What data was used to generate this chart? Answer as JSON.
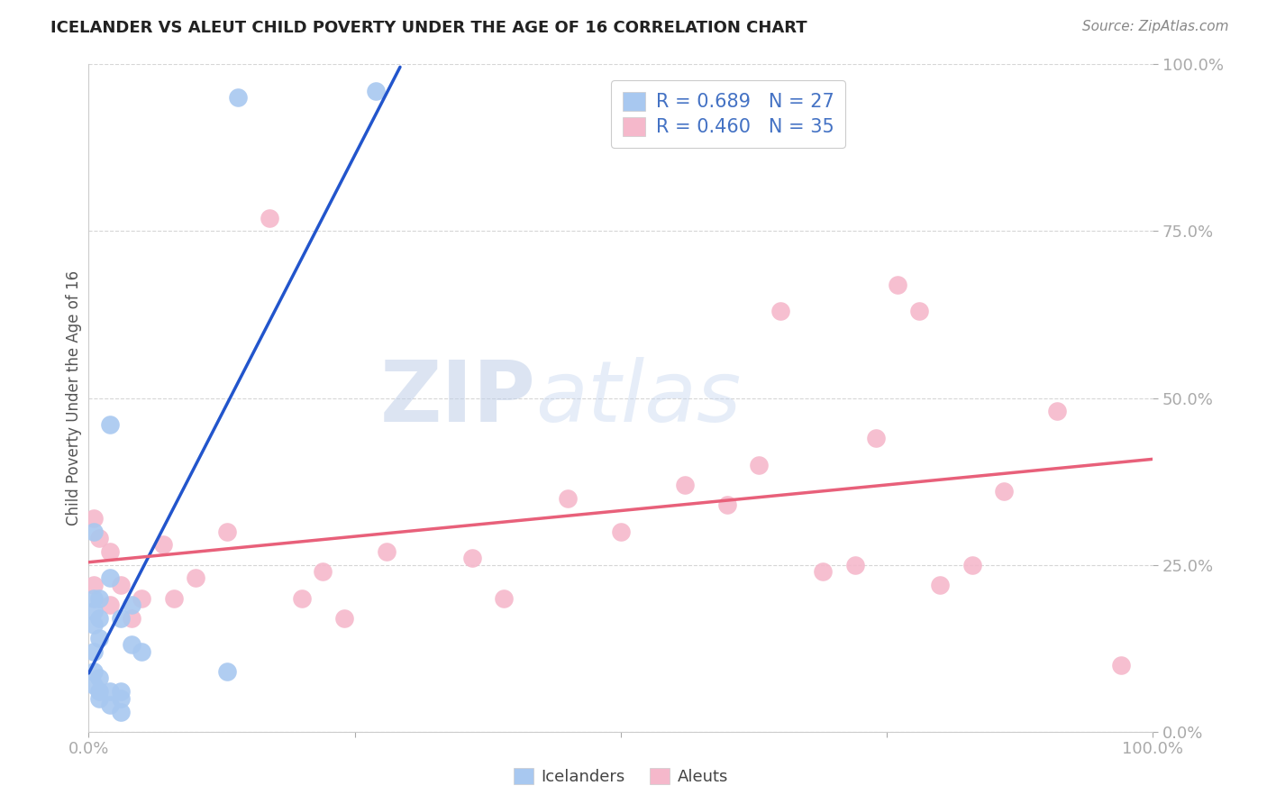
{
  "title": "ICELANDER VS ALEUT CHILD POVERTY UNDER THE AGE OF 16 CORRELATION CHART",
  "source": "Source: ZipAtlas.com",
  "ylabel": "Child Poverty Under the Age of 16",
  "xlim": [
    0.0,
    1.0
  ],
  "ylim": [
    0.0,
    1.0
  ],
  "icelanders_x": [
    0.02,
    0.14,
    0.27,
    0.005,
    0.005,
    0.01,
    0.01,
    0.02,
    0.01,
    0.005,
    0.005,
    0.005,
    0.005,
    0.01,
    0.005,
    0.01,
    0.03,
    0.04,
    0.02,
    0.04,
    0.01,
    0.05,
    0.13,
    0.03,
    0.03,
    0.02,
    0.03
  ],
  "icelanders_y": [
    0.46,
    0.95,
    0.96,
    0.3,
    0.2,
    0.17,
    0.14,
    0.23,
    0.2,
    0.18,
    0.16,
    0.12,
    0.09,
    0.08,
    0.07,
    0.06,
    0.17,
    0.19,
    0.06,
    0.13,
    0.05,
    0.12,
    0.09,
    0.05,
    0.06,
    0.04,
    0.03
  ],
  "aleuts_x": [
    0.005,
    0.005,
    0.01,
    0.02,
    0.02,
    0.03,
    0.04,
    0.05,
    0.07,
    0.08,
    0.1,
    0.13,
    0.17,
    0.2,
    0.22,
    0.24,
    0.28,
    0.36,
    0.39,
    0.45,
    0.5,
    0.56,
    0.6,
    0.63,
    0.65,
    0.69,
    0.72,
    0.74,
    0.76,
    0.78,
    0.8,
    0.83,
    0.86,
    0.91,
    0.97
  ],
  "aleuts_y": [
    0.32,
    0.22,
    0.29,
    0.19,
    0.27,
    0.22,
    0.17,
    0.2,
    0.28,
    0.2,
    0.23,
    0.3,
    0.77,
    0.2,
    0.24,
    0.17,
    0.27,
    0.26,
    0.2,
    0.35,
    0.3,
    0.37,
    0.34,
    0.4,
    0.63,
    0.24,
    0.25,
    0.44,
    0.67,
    0.63,
    0.22,
    0.25,
    0.36,
    0.48,
    0.1
  ],
  "icelander_color": "#a8c8f0",
  "aleut_color": "#f5b8cb",
  "icelander_line_color": "#2255cc",
  "aleut_line_color": "#e8607a",
  "icelander_R": 0.689,
  "icelander_N": 27,
  "aleut_R": 0.46,
  "aleut_N": 35,
  "background_color": "#ffffff",
  "grid_color": "#cccccc",
  "watermark_zip": "ZIP",
  "watermark_atlas": "atlas",
  "ytick_labels": [
    "0.0%",
    "25.0%",
    "50.0%",
    "75.0%",
    "100.0%"
  ],
  "ytick_values": [
    0.0,
    0.25,
    0.5,
    0.75,
    1.0
  ],
  "xtick_values": [
    0.0,
    0.25,
    0.5,
    0.75,
    1.0
  ],
  "xtick_labels": [
    "0.0%",
    "",
    "",
    "",
    "100.0%"
  ],
  "label_color": "#4472c4",
  "title_color": "#222222",
  "source_color": "#888888"
}
